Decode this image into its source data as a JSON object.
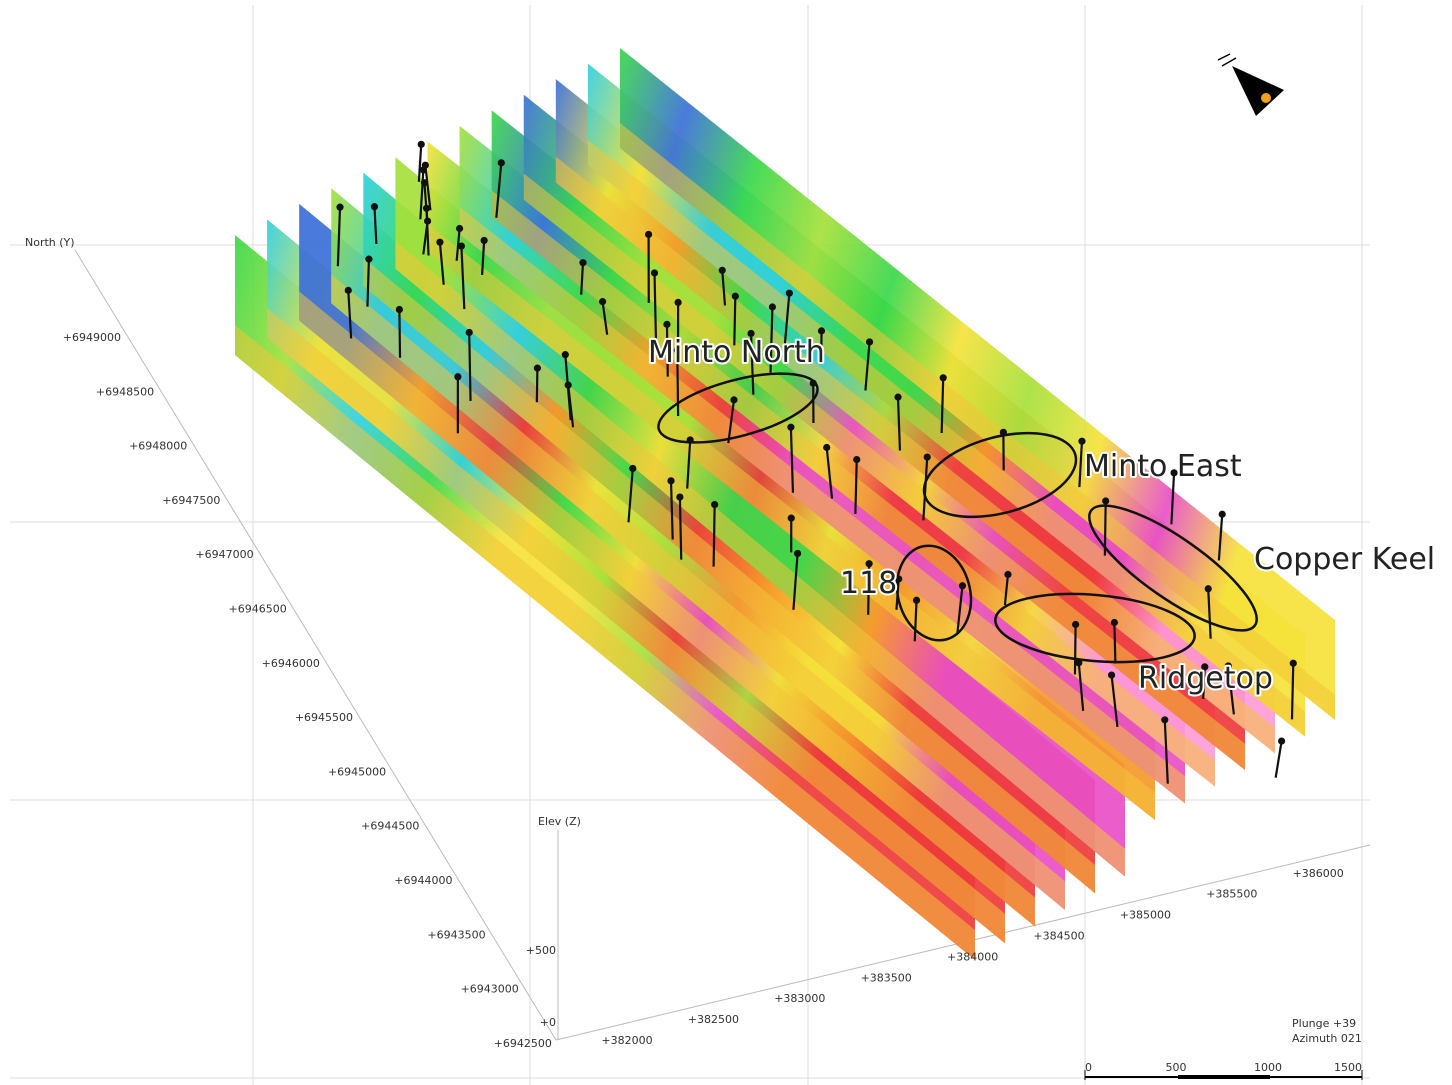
{
  "axes": {
    "north": {
      "label": "North (Y)",
      "ticks": [
        "+6949000",
        "+6948500",
        "+6948000",
        "+6947500",
        "+6947000",
        "+6946500",
        "+6946000",
        "+6945500",
        "+6945000",
        "+6944500",
        "+6944000",
        "+6943500",
        "+6943000",
        "+6942500"
      ]
    },
    "east": {
      "ticks": [
        "+382000",
        "+382500",
        "+383000",
        "+383500",
        "+384000",
        "+384500",
        "+385000",
        "+385500",
        "+386000"
      ]
    },
    "elevation": {
      "label": "Elev (Z)",
      "ticks": [
        "+500",
        "+0"
      ]
    }
  },
  "targets": [
    "Minto North",
    "Minto East",
    "Copper Keel",
    "118",
    "Ridgetop"
  ],
  "view": {
    "plunge": "Plunge +39",
    "azimuth": "Azimuth 021"
  },
  "scale_bar": [
    "0",
    "500",
    "1000",
    "1500"
  ]
}
